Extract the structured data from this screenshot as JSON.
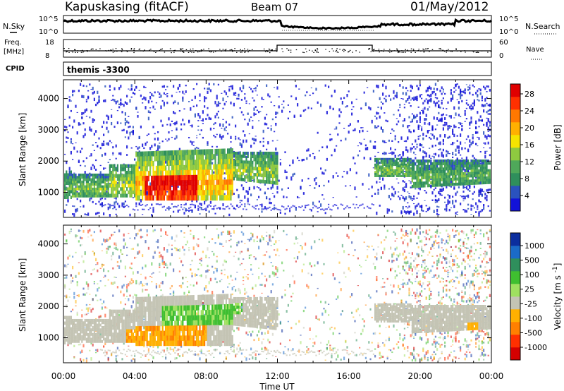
{
  "header": {
    "station": "Kapuskasing (fitACF)",
    "beam": "Beam 07",
    "date": "01/May/2012"
  },
  "top_panels": {
    "nsky_label": "N.Sky",
    "nsearch_label": "N.Search",
    "nsky_ticks": [
      "10^5",
      "10^0"
    ],
    "nsearch_ticks": [
      "10^5",
      "10^0"
    ],
    "freq_label": "Freq.",
    "freq_unit": "[MHz]",
    "freq_ticks": [
      "18",
      "8"
    ],
    "nave_label": "Nave",
    "nave_ticks": [
      "60",
      "0"
    ],
    "cpid_label": "CPID",
    "cpid_value": "themis -3300"
  },
  "colors": {
    "power_scale": [
      "#1212d8",
      "#2a52be",
      "#2f8f5c",
      "#4fa85a",
      "#8ec940",
      "#f5e400",
      "#ffb000",
      "#ff7800",
      "#ff3000",
      "#e00000"
    ],
    "velocity_scale": [
      "#0b2e9e",
      "#1b6bc8",
      "#2f8f5c",
      "#3fbf30",
      "#9fe060",
      "#c4c4b4",
      "#ffb000",
      "#ff8000",
      "#ff3000",
      "#d40000"
    ]
  },
  "chart_data": [
    {
      "type": "heatmap",
      "panel": "power",
      "ylabel": "Slant Range [km]",
      "yticks": [
        "1000",
        "2000",
        "3000",
        "4000"
      ],
      "ylim": [
        200,
        4600
      ],
      "xlim": [
        0,
        24
      ],
      "colorbar_label": "Power [dB]",
      "colorbar_ticks": [
        "4",
        "8",
        "12",
        "16",
        "20",
        "24",
        "28"
      ],
      "colorbar_range": [
        0,
        30
      ]
    },
    {
      "type": "heatmap",
      "panel": "velocity",
      "ylabel": "Slant Range [km]",
      "yticks": [
        "1000",
        "2000",
        "3000",
        "4000"
      ],
      "ylim": [
        200,
        4600
      ],
      "xlim": [
        0,
        24
      ],
      "colorbar_label": "Velocity [m s^-1]",
      "colorbar_ticks": [
        "1000",
        "500",
        "100",
        "25",
        "-25",
        "-100",
        "-500",
        "-1000"
      ]
    }
  ],
  "xaxis": {
    "label": "Time UT",
    "ticks": [
      "00:00",
      "04:00",
      "08:00",
      "12:00",
      "16:00",
      "20:00",
      "00:00"
    ]
  }
}
